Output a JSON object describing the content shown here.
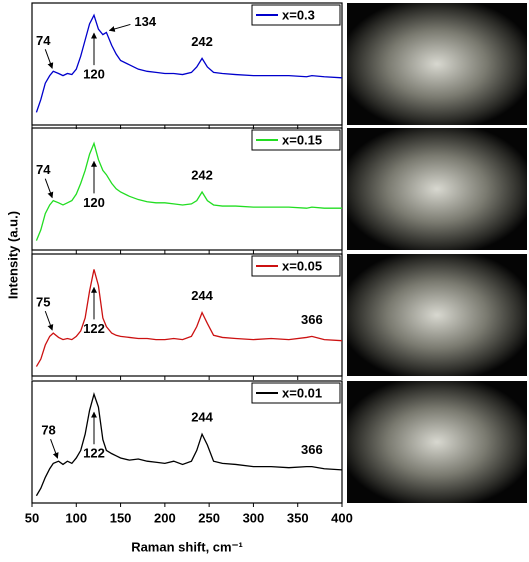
{
  "chart_data": [
    {
      "type": "line",
      "x": [
        55,
        60,
        65,
        70,
        74,
        80,
        85,
        90,
        95,
        100,
        105,
        110,
        115,
        120,
        125,
        130,
        134,
        140,
        145,
        150,
        160,
        170,
        180,
        190,
        200,
        210,
        220,
        230,
        236,
        242,
        248,
        255,
        265,
        280,
        300,
        320,
        340,
        360,
        366,
        380,
        400
      ],
      "xlim": [
        50,
        400
      ],
      "ylim": [
        0,
        1
      ],
      "legend": "top-right",
      "series": [
        {
          "name": "x=0.3",
          "color": "#0000cc",
          "values": [
            0.08,
            0.2,
            0.35,
            0.42,
            0.46,
            0.44,
            0.42,
            0.44,
            0.43,
            0.48,
            0.6,
            0.75,
            0.9,
            0.98,
            0.85,
            0.8,
            0.82,
            0.7,
            0.62,
            0.56,
            0.52,
            0.48,
            0.46,
            0.45,
            0.44,
            0.44,
            0.43,
            0.45,
            0.5,
            0.58,
            0.5,
            0.45,
            0.44,
            0.43,
            0.42,
            0.42,
            0.42,
            0.41,
            0.42,
            0.41,
            0.4
          ]
        }
      ],
      "annotations": [
        {
          "text": "74",
          "x": 74,
          "placement": "above",
          "arrow": true
        },
        {
          "text": "120",
          "x": 120,
          "placement": "below",
          "arrow": true
        },
        {
          "text": "134",
          "x": 134,
          "placement": "right",
          "arrow": true
        },
        {
          "text": "242",
          "x": 242,
          "placement": "above",
          "arrow": false
        }
      ]
    },
    {
      "type": "line",
      "x": [
        55,
        60,
        65,
        70,
        74,
        80,
        85,
        90,
        95,
        100,
        105,
        110,
        115,
        120,
        125,
        130,
        134,
        140,
        145,
        150,
        160,
        170,
        180,
        190,
        200,
        210,
        220,
        230,
        236,
        242,
        248,
        255,
        265,
        280,
        300,
        320,
        340,
        360,
        366,
        380,
        400
      ],
      "xlim": [
        50,
        400
      ],
      "ylim": [
        0,
        1
      ],
      "legend": "top-right",
      "series": [
        {
          "name": "x=0.15",
          "color": "#22dd22",
          "values": [
            0.05,
            0.15,
            0.3,
            0.38,
            0.42,
            0.4,
            0.38,
            0.4,
            0.42,
            0.48,
            0.58,
            0.7,
            0.85,
            0.95,
            0.8,
            0.7,
            0.66,
            0.58,
            0.53,
            0.5,
            0.46,
            0.43,
            0.41,
            0.4,
            0.4,
            0.39,
            0.38,
            0.39,
            0.42,
            0.5,
            0.42,
            0.38,
            0.37,
            0.37,
            0.36,
            0.36,
            0.36,
            0.35,
            0.36,
            0.35,
            0.35
          ]
        }
      ],
      "annotations": [
        {
          "text": "74",
          "x": 74,
          "placement": "above",
          "arrow": true
        },
        {
          "text": "120",
          "x": 120,
          "placement": "below",
          "arrow": true
        },
        {
          "text": "242",
          "x": 242,
          "placement": "above",
          "arrow": false
        }
      ]
    },
    {
      "type": "line",
      "x": [
        55,
        60,
        65,
        70,
        74,
        80,
        85,
        90,
        95,
        100,
        105,
        110,
        115,
        120,
        125,
        130,
        134,
        140,
        145,
        150,
        160,
        170,
        180,
        190,
        200,
        210,
        220,
        230,
        236,
        242,
        248,
        255,
        265,
        280,
        300,
        320,
        340,
        360,
        366,
        380,
        400
      ],
      "xlim": [
        50,
        400
      ],
      "ylim": [
        0,
        1
      ],
      "legend": "top-right",
      "series": [
        {
          "name": "x=0.05",
          "color": "#cc1111",
          "values": [
            0.05,
            0.12,
            0.25,
            0.33,
            0.36,
            0.32,
            0.3,
            0.31,
            0.3,
            0.33,
            0.38,
            0.5,
            0.75,
            0.95,
            0.8,
            0.5,
            0.42,
            0.36,
            0.34,
            0.33,
            0.32,
            0.31,
            0.31,
            0.3,
            0.3,
            0.31,
            0.3,
            0.33,
            0.42,
            0.55,
            0.45,
            0.34,
            0.32,
            0.31,
            0.3,
            0.31,
            0.3,
            0.32,
            0.33,
            0.3,
            0.29
          ]
        }
      ],
      "annotations": [
        {
          "text": "75",
          "x": 74,
          "placement": "above",
          "arrow": true
        },
        {
          "text": "122",
          "x": 120,
          "placement": "below",
          "arrow": true
        },
        {
          "text": "244",
          "x": 242,
          "placement": "above",
          "arrow": false
        },
        {
          "text": "366",
          "x": 366,
          "placement": "above",
          "arrow": false
        }
      ]
    },
    {
      "type": "line",
      "x": [
        55,
        60,
        65,
        70,
        74,
        80,
        85,
        90,
        95,
        100,
        105,
        110,
        115,
        120,
        125,
        130,
        134,
        140,
        145,
        150,
        160,
        170,
        180,
        190,
        200,
        210,
        220,
        230,
        236,
        242,
        248,
        255,
        265,
        280,
        300,
        320,
        340,
        360,
        366,
        380,
        400
      ],
      "xlim": [
        50,
        400
      ],
      "ylim": [
        0,
        1
      ],
      "legend": "top-right",
      "xticks": [
        50,
        100,
        150,
        200,
        250,
        300,
        350,
        400
      ],
      "xlabel": "Raman shift, cm⁻¹",
      "ylabel": "Intensity (a.u.)",
      "series": [
        {
          "name": "x=0.01",
          "color": "#000000",
          "values": [
            0.03,
            0.1,
            0.2,
            0.28,
            0.33,
            0.35,
            0.32,
            0.35,
            0.33,
            0.38,
            0.45,
            0.6,
            0.82,
            0.97,
            0.85,
            0.55,
            0.45,
            0.42,
            0.4,
            0.38,
            0.36,
            0.37,
            0.35,
            0.34,
            0.33,
            0.35,
            0.32,
            0.35,
            0.45,
            0.6,
            0.5,
            0.35,
            0.33,
            0.32,
            0.3,
            0.3,
            0.29,
            0.3,
            0.3,
            0.28,
            0.27
          ]
        }
      ],
      "annotations": [
        {
          "text": "78",
          "x": 80,
          "placement": "above",
          "arrow": true
        },
        {
          "text": "122",
          "x": 120,
          "placement": "below",
          "arrow": true
        },
        {
          "text": "244",
          "x": 242,
          "placement": "above",
          "arrow": false
        },
        {
          "text": "366",
          "x": 366,
          "placement": "above",
          "arrow": false
        }
      ]
    }
  ]
}
